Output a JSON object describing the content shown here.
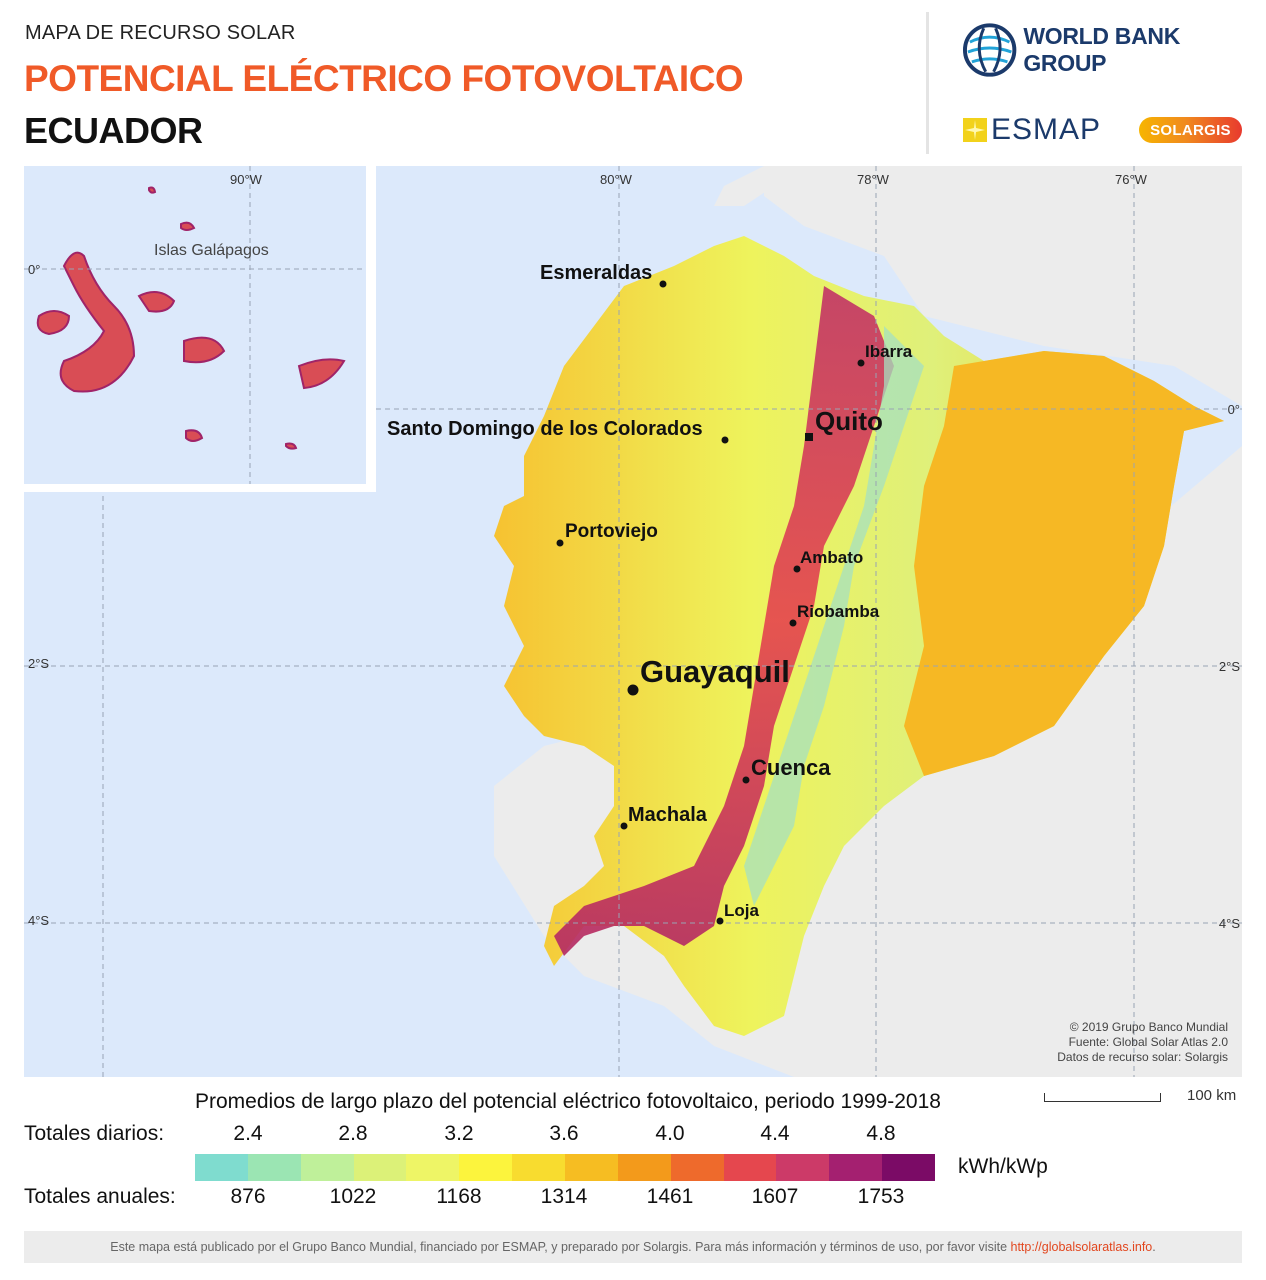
{
  "header": {
    "subtitle": "MAPA DE RECURSO SOLAR",
    "title": "POTENCIAL ELÉCTRICO FOTOVOLTAICO",
    "country": "ECUADOR"
  },
  "logos": {
    "world_bank": "WORLD BANK GROUP",
    "esmap": "ESMAP",
    "solargis": "SOLARGIS"
  },
  "map": {
    "longitudes": [
      "90°W",
      "80°W",
      "78°W",
      "76°W"
    ],
    "latitudes_left": [
      "0°",
      "2°S",
      "4°S"
    ],
    "latitudes_right": [
      "0°",
      "2°S",
      "4°S"
    ],
    "inset_label": "Islas Galápagos",
    "cities": [
      {
        "name": "Esmeraldas"
      },
      {
        "name": "Ibarra"
      },
      {
        "name": "Quito"
      },
      {
        "name": "Santo Domingo de los Colorados"
      },
      {
        "name": "Portoviejo"
      },
      {
        "name": "Ambato"
      },
      {
        "name": "Riobamba"
      },
      {
        "name": "Guayaquil"
      },
      {
        "name": "Cuenca"
      },
      {
        "name": "Machala"
      },
      {
        "name": "Loja"
      }
    ],
    "credits": [
      "© 2019 Grupo Banco Mundial",
      "Fuente: Global Solar Atlas 2.0",
      "Datos de recurso solar: Solargis"
    ],
    "scale": "100 km"
  },
  "legend": {
    "title": "Promedios de largo plazo del potencial eléctrico fotovoltaico, periodo 1999-2018",
    "daily_label": "Totales diarios:",
    "annual_label": "Totales anuales:",
    "daily_ticks": [
      "2.4",
      "2.8",
      "3.2",
      "3.6",
      "4.0",
      "4.4",
      "4.8"
    ],
    "annual_ticks": [
      "876",
      "1022",
      "1168",
      "1314",
      "1461",
      "1607",
      "1753"
    ],
    "unit": "kWh/kWp",
    "colors": [
      "#7fdccf",
      "#9be5b3",
      "#bff09a",
      "#dcf178",
      "#eef566",
      "#fcf43d",
      "#f8dc2f",
      "#f6bd22",
      "#f39a1b",
      "#ee6a2c",
      "#e5474e",
      "#cc3a68",
      "#a42070",
      "#7b0b66"
    ]
  },
  "footer": {
    "text": "Este mapa está publicado por el Grupo Banco Mundial, financiado por ESMAP, y preparado por Solargis. Para más información y términos de uso, por favor visite",
    "link": "http://globalsolaratlas.info",
    "end": "."
  }
}
